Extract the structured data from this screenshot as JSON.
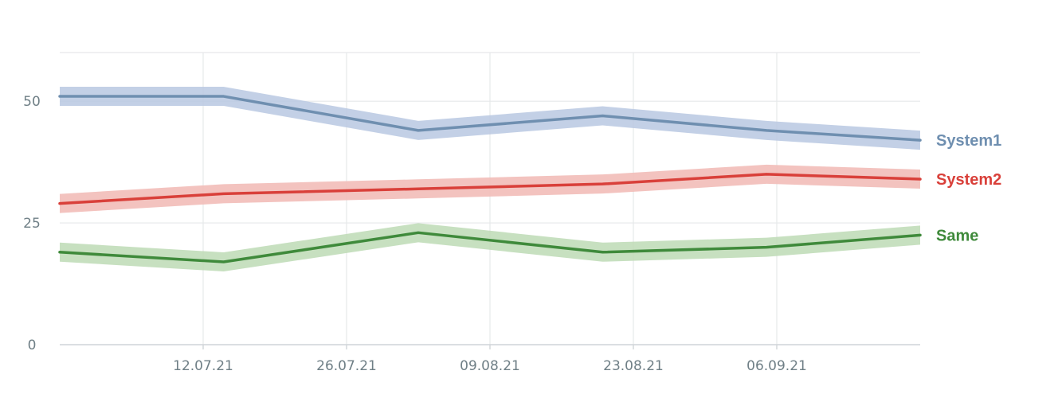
{
  "chart_data": {
    "type": "line",
    "title": "",
    "xlabel": "",
    "ylabel": "",
    "ylim": [
      0,
      60
    ],
    "xlim": [
      "2021-06-28",
      "2021-09-20"
    ],
    "grid": true,
    "legend": "right, inline labels at line ends",
    "x_ticks": [
      "12.07.21",
      "26.07.21",
      "09.08.21",
      "23.08.21",
      "06.09.21"
    ],
    "y_ticks": [
      0,
      25,
      50
    ],
    "x": [
      "2021-06-28",
      "2021-07-14",
      "2021-08-02",
      "2021-08-20",
      "2021-09-05",
      "2021-09-20"
    ],
    "series": [
      {
        "name": "System1",
        "color": "#6f8fb0",
        "band_color": "#b9c8e2",
        "values": [
          51,
          51,
          44,
          47,
          44,
          42
        ]
      },
      {
        "name": "System2",
        "color": "#d9403a",
        "band_color": "#f1b8b4",
        "values": [
          29,
          31,
          32,
          33,
          35,
          34
        ]
      },
      {
        "name": "Same",
        "color": "#3f8a3b",
        "band_color": "#bddbb5",
        "values": [
          19,
          17,
          23,
          19,
          20,
          22.5
        ]
      }
    ]
  }
}
